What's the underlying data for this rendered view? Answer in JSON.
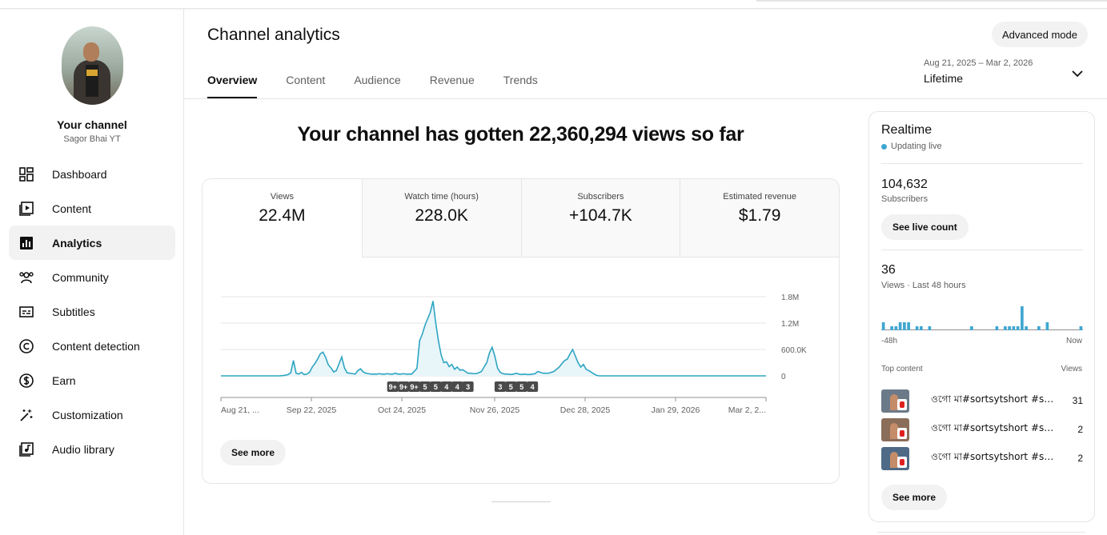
{
  "sidebar": {
    "channel_title": "Your channel",
    "channel_name": "Sagor Bhai YT",
    "items": [
      {
        "label": "Dashboard",
        "icon": "dashboard-icon"
      },
      {
        "label": "Content",
        "icon": "content-icon"
      },
      {
        "label": "Analytics",
        "icon": "analytics-icon",
        "active": true
      },
      {
        "label": "Community",
        "icon": "community-icon"
      },
      {
        "label": "Subtitles",
        "icon": "subtitles-icon"
      },
      {
        "label": "Content detection",
        "icon": "copyright-icon"
      },
      {
        "label": "Earn",
        "icon": "dollar-icon"
      },
      {
        "label": "Customization",
        "icon": "magic-wand-icon"
      },
      {
        "label": "Audio library",
        "icon": "audio-library-icon"
      }
    ]
  },
  "header": {
    "title": "Channel analytics",
    "advanced_mode": "Advanced mode",
    "tabs": [
      "Overview",
      "Content",
      "Audience",
      "Revenue",
      "Trends"
    ],
    "date_range": "Aug 21, 2025 – Mar 2, 2026",
    "date_label": "Lifetime"
  },
  "overview": {
    "headline": "Your channel has gotten 22,360,294 views so far",
    "metrics": [
      {
        "label": "Views",
        "value": "22.4M"
      },
      {
        "label": "Watch time (hours)",
        "value": "228.0K"
      },
      {
        "label": "Subscribers",
        "value": "+104.7K"
      },
      {
        "label": "Estimated revenue",
        "value": "$1.79"
      }
    ],
    "see_more": "See more"
  },
  "chart_data": {
    "type": "area",
    "ylim": [
      0,
      1800000
    ],
    "yticks": [
      "1.8M",
      "1.2M",
      "600.0K",
      "0"
    ],
    "xticks": [
      "Aug 21, ...",
      "Sep 22, 2025",
      "Oct 24, 2025",
      "Nov 26, 2025",
      "Dec 28, 2025",
      "Jan 29, 2026",
      "Mar 2, 2..."
    ],
    "x_start": "2025-08-21",
    "x_end": "2026-03-02",
    "series": [
      {
        "values": [
          0,
          0,
          0,
          0,
          0,
          0,
          0,
          0,
          0,
          0,
          0,
          0,
          0,
          0,
          0,
          0,
          0,
          0,
          0,
          0,
          0,
          0,
          0,
          5000,
          15000,
          30000,
          70000,
          350000,
          60000,
          40000,
          80000,
          30000,
          40000,
          80000,
          200000,
          280000,
          380000,
          500000,
          540000,
          420000,
          250000,
          180000,
          90000,
          120000,
          280000,
          430000,
          180000,
          70000,
          60000,
          50000,
          40000,
          120000,
          160000,
          90000,
          60000,
          50000,
          40000,
          40000,
          40000,
          50000,
          40000,
          40000,
          50000,
          40000,
          40000,
          60000,
          40000,
          40000,
          50000,
          40000,
          40000,
          40000,
          100000,
          170000,
          800000,
          950000,
          1150000,
          1300000,
          1450000,
          1700000,
          1200000,
          800000,
          480000,
          300000,
          320000,
          210000,
          260000,
          150000,
          200000,
          130000,
          140000,
          100000,
          60000,
          60000,
          50000,
          50000,
          70000,
          100000,
          200000,
          300000,
          520000,
          650000,
          450000,
          180000,
          80000,
          50000,
          40000,
          40000,
          30000,
          40000,
          60000,
          40000,
          30000,
          40000,
          30000,
          30000,
          40000,
          50000,
          100000,
          80000,
          60000,
          60000,
          60000,
          80000,
          100000,
          150000,
          200000,
          280000,
          350000,
          380000,
          500000,
          600000,
          450000,
          300000,
          200000,
          260000,
          150000,
          120000,
          80000,
          40000,
          10000,
          0,
          0,
          0,
          0,
          0,
          0,
          0,
          0,
          0,
          0,
          0,
          0,
          0,
          0,
          0,
          0,
          0,
          0,
          0,
          0,
          0,
          0,
          0,
          0,
          0,
          0,
          0,
          0,
          0,
          0,
          0,
          0,
          0,
          0,
          0,
          0,
          0,
          0,
          0,
          0,
          0,
          0,
          0,
          0,
          0,
          0,
          0,
          0,
          0,
          0,
          0,
          0,
          0,
          0,
          0,
          0,
          0,
          0,
          0,
          0,
          0,
          0,
          0
        ]
      }
    ],
    "markers": [
      {
        "day": 64,
        "label": "9+"
      },
      {
        "day": 68,
        "label": "9+"
      },
      {
        "day": 72,
        "label": "9+"
      },
      {
        "day": 76,
        "label": "5"
      },
      {
        "day": 80,
        "label": "5"
      },
      {
        "day": 84,
        "label": "4"
      },
      {
        "day": 88,
        "label": "4"
      },
      {
        "day": 92,
        "label": "3"
      },
      {
        "day": 104,
        "label": "3"
      },
      {
        "day": 108,
        "label": "5"
      },
      {
        "day": 112,
        "label": "5"
      },
      {
        "day": 116,
        "label": "4"
      }
    ]
  },
  "realtime": {
    "title": "Realtime",
    "status": "Updating live",
    "subscribers_value": "104,632",
    "subscribers_label": "Subscribers",
    "see_live_count": "See live count",
    "views_value": "36",
    "views_label": "Views · Last 48 hours",
    "bars": [
      2,
      0,
      1,
      1,
      2,
      2,
      2,
      0,
      1,
      1,
      0,
      1,
      0,
      0,
      0,
      0,
      0,
      0,
      0,
      0,
      0,
      1,
      0,
      0,
      0,
      0,
      0,
      1,
      0,
      1,
      1,
      1,
      1,
      6,
      1,
      0,
      0,
      1,
      0,
      2,
      0,
      0,
      0,
      0,
      0,
      0,
      0,
      1
    ],
    "axis_left": "-48h",
    "axis_right": "Now",
    "top_content_label": "Top content",
    "top_content_views_label": "Views",
    "top_content": [
      {
        "title": "ওগো মা#sortsytshort #sort ...",
        "views": "31"
      },
      {
        "title": "ওগো মা#sortsytshort #sort #...",
        "views": "2"
      },
      {
        "title": "ওগো মা#sortsytshort #sort #...",
        "views": "2"
      }
    ],
    "see_more": "See more"
  },
  "colors": {
    "accent": "#3ea6d1",
    "chart_line": "#2da5c2",
    "chart_fill": "#e8f5f9"
  }
}
